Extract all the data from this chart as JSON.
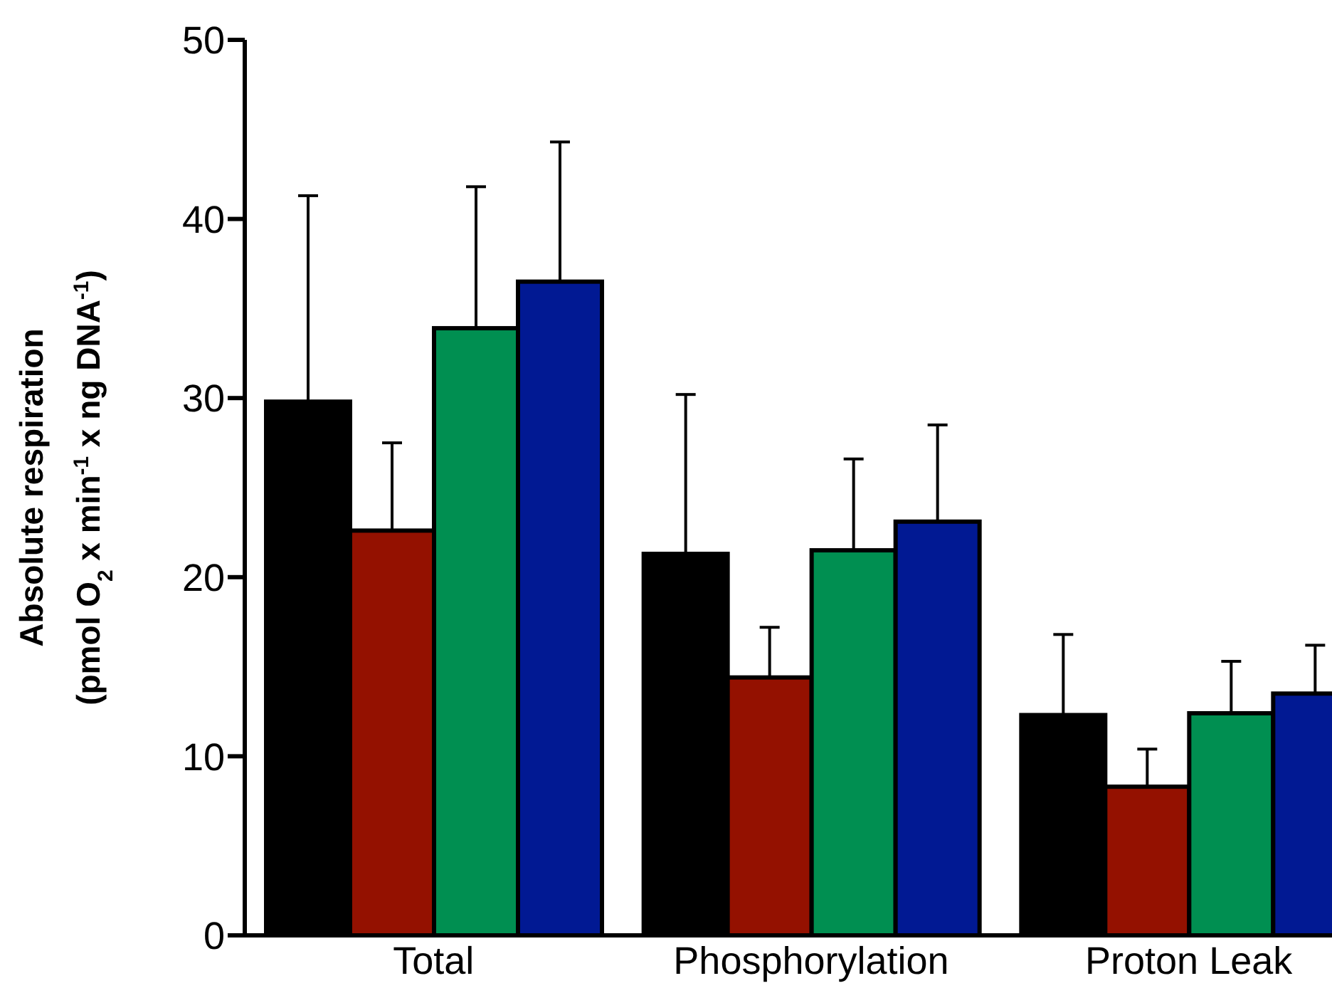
{
  "chart_data": {
    "type": "bar",
    "categories": [
      "Total",
      "Phosphorylation",
      "Proton Leak"
    ],
    "ylabel": "Absolute respiration\n(pmol O$_{2}$ x min$^{-1}$ x ng DNA$^{-1}$)",
    "ylim": [
      0,
      50
    ],
    "yticks": [
      0,
      10,
      20,
      30,
      40,
      50
    ],
    "grid": false,
    "legend": false,
    "series": [
      {
        "color": "#000000",
        "values": [
          29.8,
          21.3,
          12.3
        ],
        "errors": [
          11.5,
          8.9,
          4.5
        ]
      },
      {
        "color": "#941100",
        "values": [
          22.6,
          14.4,
          8.3
        ],
        "errors": [
          4.9,
          2.8,
          2.1
        ]
      },
      {
        "color": "#008f51",
        "values": [
          33.9,
          21.5,
          12.4
        ],
        "errors": [
          7.9,
          5.1,
          2.9
        ]
      },
      {
        "color": "#011993",
        "values": [
          36.5,
          23.1,
          13.5
        ],
        "errors": [
          7.8,
          5.4,
          2.7
        ]
      }
    ]
  }
}
